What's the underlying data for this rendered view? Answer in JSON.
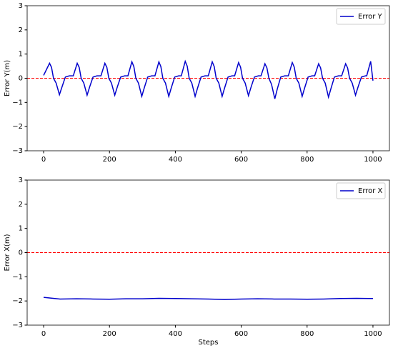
{
  "chart_data": [
    {
      "type": "line",
      "ylabel": "Error Y(m)",
      "legend": "upper right",
      "xlim": [
        -50,
        1050
      ],
      "ylim": [
        -3,
        3
      ],
      "xticks": [
        0,
        200,
        400,
        600,
        800,
        1000
      ],
      "yticks": [
        {
          "value": -3,
          "label": "−3"
        },
        {
          "value": -2,
          "label": "−2"
        },
        {
          "value": -1,
          "label": "−1"
        },
        0,
        1,
        2,
        3
      ],
      "reference_line": {
        "value": 0,
        "color": "#ff0000"
      },
      "x": [
        0,
        18,
        24,
        30,
        38,
        48,
        56,
        66,
        78,
        90,
        102,
        108,
        114,
        122,
        132,
        140,
        150,
        162,
        174,
        186,
        192,
        198,
        206,
        216,
        224,
        234,
        246,
        256,
        268,
        274,
        280,
        288,
        298,
        306,
        316,
        328,
        338,
        350,
        356,
        362,
        370,
        380,
        388,
        398,
        410,
        418,
        430,
        436,
        442,
        450,
        460,
        468,
        478,
        490,
        500,
        512,
        518,
        524,
        532,
        542,
        550,
        560,
        572,
        580,
        592,
        598,
        604,
        612,
        622,
        630,
        640,
        652,
        660,
        672,
        678,
        684,
        692,
        702,
        710,
        720,
        732,
        743,
        755,
        761,
        767,
        775,
        785,
        793,
        803,
        815,
        823,
        835,
        841,
        847,
        855,
        865,
        873,
        883,
        895,
        905,
        917,
        923,
        929,
        937,
        947,
        955,
        965,
        977,
        981,
        993,
        1000
      ],
      "series": [
        {
          "name": "Error Y",
          "color": "#0000cc",
          "values": [
            0.12,
            0.62,
            0.45,
            0,
            -0.2,
            -0.68,
            -0.35,
            0.05,
            0.1,
            0.1,
            0.62,
            0.45,
            0,
            -0.2,
            -0.7,
            -0.35,
            0.05,
            0.1,
            0.1,
            0.62,
            0.45,
            0,
            -0.2,
            -0.7,
            -0.35,
            0.05,
            0.1,
            0.1,
            0.68,
            0.48,
            0,
            -0.2,
            -0.75,
            -0.38,
            0.05,
            0.1,
            0.1,
            0.68,
            0.48,
            0,
            -0.2,
            -0.75,
            -0.38,
            0.05,
            0.1,
            0.1,
            0.7,
            0.5,
            0,
            -0.2,
            -0.75,
            -0.38,
            0.05,
            0.1,
            0.1,
            0.68,
            0.48,
            0,
            -0.2,
            -0.75,
            -0.38,
            0.05,
            0.1,
            0.1,
            0.65,
            0.46,
            0,
            -0.2,
            -0.72,
            -0.36,
            0.05,
            0.1,
            0.1,
            0.6,
            0.43,
            0,
            -0.25,
            -0.85,
            -0.42,
            0.05,
            0.1,
            0.1,
            0.65,
            0.46,
            0,
            -0.2,
            -0.75,
            -0.38,
            0.05,
            0.1,
            0.1,
            0.6,
            0.43,
            0,
            -0.2,
            -0.78,
            -0.4,
            0.05,
            0.1,
            0.1,
            0.6,
            0.43,
            0,
            -0.2,
            -0.7,
            -0.35,
            0.05,
            0.1,
            0.1,
            0.7,
            -0.1
          ]
        }
      ]
    },
    {
      "type": "line",
      "ylabel": "Error X(m)",
      "xlabel": "Steps",
      "legend": "upper right",
      "xlim": [
        -50,
        1050
      ],
      "ylim": [
        -3,
        3
      ],
      "xticks": [
        0,
        200,
        400,
        600,
        800,
        1000
      ],
      "yticks": [
        {
          "value": -3,
          "label": "−3"
        },
        {
          "value": -2,
          "label": "−2"
        },
        {
          "value": -1,
          "label": "−1"
        },
        0,
        1,
        2,
        3
      ],
      "reference_line": {
        "value": 0,
        "color": "#ff0000"
      },
      "x": [
        0,
        50,
        100,
        150,
        200,
        250,
        300,
        350,
        400,
        450,
        500,
        550,
        600,
        650,
        700,
        750,
        800,
        850,
        900,
        950,
        1000
      ],
      "series": [
        {
          "name": "Error X",
          "color": "#0000cc",
          "values": [
            -1.85,
            -1.92,
            -1.91,
            -1.92,
            -1.93,
            -1.91,
            -1.91,
            -1.89,
            -1.9,
            -1.91,
            -1.92,
            -1.94,
            -1.92,
            -1.91,
            -1.92,
            -1.92,
            -1.93,
            -1.92,
            -1.9,
            -1.89,
            -1.9
          ]
        }
      ]
    }
  ]
}
